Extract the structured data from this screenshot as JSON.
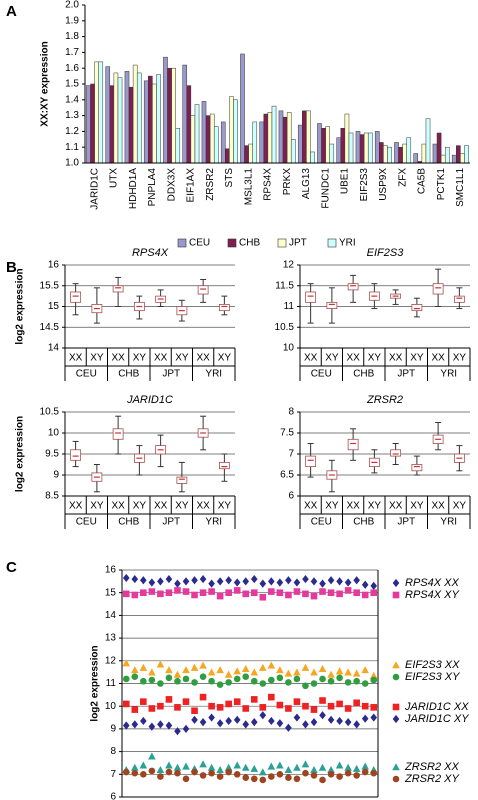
{
  "chart_data": [
    {
      "type": "bar",
      "panel": "A",
      "ylabel": "XX:XY expression",
      "categories": [
        "JARID1C",
        "UTX",
        "HDHD1A",
        "PNPLA4",
        "DDX3X",
        "EIF1AX",
        "ZRSR2",
        "STS",
        "MSL3L1",
        "RPS4X",
        "PRKX",
        "ALG13",
        "FUNDC1",
        "UBE1",
        "EIF2S3",
        "USP9X",
        "ZFX",
        "CA5B",
        "PCTK1",
        "SMC1L1"
      ],
      "series": [
        {
          "name": "CEU",
          "color": "#9999cc",
          "values": [
            1.49,
            1.61,
            1.58,
            1.52,
            1.67,
            1.62,
            1.39,
            1.26,
            1.69,
            1.26,
            1.33,
            1.24,
            1.25,
            1.16,
            1.2,
            1.2,
            1.13,
            1.06,
            1.12,
            1.05
          ]
        },
        {
          "name": "CHB",
          "color": "#7f1f4f",
          "values": [
            1.5,
            1.49,
            1.48,
            1.55,
            1.6,
            1.49,
            1.3,
            1.09,
            1.11,
            1.31,
            1.29,
            1.33,
            1.22,
            1.22,
            1.18,
            1.13,
            1.1,
            1.01,
            1.19,
            1.11
          ]
        },
        {
          "name": "JPT",
          "color": "#ffffcc",
          "values": [
            1.64,
            1.57,
            1.62,
            1.5,
            1.6,
            1.3,
            1.31,
            1.42,
            1.12,
            1.32,
            1.32,
            1.33,
            1.23,
            1.31,
            1.19,
            1.11,
            1.12,
            1.12,
            1.05,
            1.06
          ]
        },
        {
          "name": "YRI",
          "color": "#ccffff",
          "values": [
            1.64,
            1.54,
            1.57,
            1.56,
            1.22,
            1.37,
            1.23,
            1.4,
            1.26,
            1.36,
            1.15,
            1.07,
            1.12,
            1.19,
            1.19,
            1.1,
            1.16,
            1.28,
            1.1,
            1.11
          ]
        }
      ],
      "ylim": [
        1.0,
        2.0
      ],
      "yticks": [
        {
          "value": 1.0,
          "label": "1.0"
        },
        1.1,
        1.2,
        1.3,
        1.4,
        1.5,
        1.6,
        1.7,
        1.8,
        1.9,
        {
          "value": 2.0,
          "label": "2.0"
        }
      ],
      "grid": false,
      "legend": "bottom"
    },
    {
      "type": "box",
      "panel": "B",
      "title": "RPS4X",
      "ylabel": "log2 expression",
      "categories": [
        "XX",
        "XY",
        "XX",
        "XY",
        "XX",
        "XY",
        "XX",
        "XY"
      ],
      "groups": [
        "CEU",
        "CHB",
        "JPT",
        "YRI"
      ],
      "whisker_low": [
        14.8,
        14.6,
        15.0,
        14.7,
        15.0,
        14.65,
        15.1,
        14.8
      ],
      "q1": [
        15.1,
        14.85,
        15.35,
        14.9,
        15.1,
        14.8,
        15.3,
        14.9
      ],
      "median": [
        15.25,
        14.95,
        15.45,
        15.0,
        15.18,
        14.9,
        15.42,
        15.0
      ],
      "q3": [
        15.35,
        15.05,
        15.5,
        15.1,
        15.25,
        15.0,
        15.5,
        15.05
      ],
      "whisker_high": [
        15.55,
        15.45,
        15.7,
        15.25,
        15.4,
        15.15,
        15.65,
        15.25
      ],
      "ylim": [
        14,
        16
      ],
      "yticks": [
        14,
        14.5,
        15,
        15.5,
        16
      ],
      "grid": true
    },
    {
      "type": "box",
      "title": "EIF2S3",
      "categories": [
        "XX",
        "XY",
        "XX",
        "XY",
        "XX",
        "XY",
        "XX",
        "XY"
      ],
      "groups": [
        "CEU",
        "CHB",
        "JPT",
        "YRI"
      ],
      "whisker_low": [
        10.6,
        10.6,
        11.1,
        10.95,
        11.05,
        10.75,
        11.0,
        10.95
      ],
      "q1": [
        11.1,
        10.95,
        11.4,
        11.15,
        11.2,
        10.9,
        11.3,
        11.1
      ],
      "median": [
        11.25,
        11.05,
        11.5,
        11.25,
        11.25,
        10.95,
        11.45,
        11.2
      ],
      "q3": [
        11.35,
        11.1,
        11.55,
        11.35,
        11.3,
        11.05,
        11.55,
        11.25
      ],
      "whisker_high": [
        11.55,
        11.45,
        11.75,
        11.55,
        11.4,
        11.2,
        11.9,
        11.45
      ],
      "ylim": [
        10,
        12
      ],
      "yticks": [
        10,
        10.5,
        11,
        11.5,
        12
      ],
      "grid": true
    },
    {
      "type": "box",
      "title": "JARID1C",
      "ylabel": "log2 expression",
      "categories": [
        "XX",
        "XY",
        "XX",
        "XY",
        "XX",
        "XY",
        "XX",
        "XY"
      ],
      "groups": [
        "CEU",
        "CHB",
        "JPT",
        "YRI"
      ],
      "whisker_low": [
        9.2,
        8.6,
        9.5,
        9.0,
        9.2,
        8.6,
        9.6,
        8.85
      ],
      "q1": [
        9.35,
        8.85,
        9.85,
        9.3,
        9.5,
        8.8,
        9.9,
        9.15
      ],
      "median": [
        9.45,
        8.95,
        10.0,
        9.4,
        9.6,
        8.9,
        10.0,
        9.2
      ],
      "q3": [
        9.6,
        9.05,
        10.1,
        9.5,
        9.7,
        8.95,
        10.1,
        9.3
      ],
      "whisker_high": [
        9.8,
        9.25,
        10.4,
        9.7,
        9.95,
        9.3,
        10.4,
        9.5
      ],
      "ylim": [
        8.5,
        10.5
      ],
      "yticks": [
        8.5,
        9,
        9.5,
        10,
        10.5
      ],
      "grid": true
    },
    {
      "type": "box",
      "title": "ZRSR2",
      "categories": [
        "XX",
        "XY",
        "XX",
        "XY",
        "XX",
        "XY",
        "XX",
        "XY"
      ],
      "groups": [
        "CEU",
        "CHB",
        "JPT",
        "YRI"
      ],
      "whisker_low": [
        6.45,
        6.1,
        6.85,
        6.55,
        6.75,
        6.5,
        7.1,
        6.6
      ],
      "q1": [
        6.7,
        6.4,
        7.1,
        6.7,
        6.95,
        6.6,
        7.25,
        6.8
      ],
      "median": [
        6.85,
        6.5,
        7.25,
        6.8,
        7.0,
        6.7,
        7.35,
        6.9
      ],
      "q3": [
        6.95,
        6.6,
        7.35,
        6.9,
        7.1,
        6.75,
        7.45,
        7.0
      ],
      "whisker_high": [
        7.25,
        6.85,
        7.6,
        7.1,
        7.25,
        6.95,
        7.75,
        7.2
      ],
      "ylim": [
        6,
        8
      ],
      "yticks": [
        6,
        6.5,
        7,
        7.5,
        8
      ],
      "grid": true
    },
    {
      "type": "scatter",
      "panel": "C",
      "ylabel": "log2 expression",
      "series": [
        {
          "name": "RPS4X XX",
          "color": "#2b2b8f",
          "marker": "diamond",
          "values": [
            15.65,
            15.6,
            15.55,
            15.45,
            15.5,
            15.6,
            15.4,
            15.5,
            15.55,
            15.6,
            15.4,
            15.5,
            15.55,
            15.45,
            15.5,
            15.6,
            15.4,
            15.5,
            15.45,
            15.55,
            15.45,
            15.6,
            15.5,
            15.4,
            15.55,
            15.5,
            15.45,
            15.55,
            15.35,
            15.3
          ]
        },
        {
          "name": "RPS4X XY",
          "color": "#e6399b",
          "marker": "square",
          "values": [
            14.95,
            14.9,
            15.0,
            15.05,
            14.95,
            15.0,
            15.1,
            15.05,
            14.9,
            15.0,
            15.05,
            14.85,
            15.0,
            15.1,
            14.95,
            15.0,
            14.8,
            15.05,
            15.0,
            14.9,
            15.05,
            14.95,
            14.85,
            15.05,
            15.0,
            14.95,
            15.1,
            15.0,
            14.9,
            15.0
          ]
        },
        {
          "name": "EIF2S3 XX",
          "color": "#f5a623",
          "marker": "triangle",
          "values": [
            11.9,
            11.6,
            11.7,
            11.5,
            11.85,
            11.6,
            11.4,
            11.6,
            11.7,
            11.8,
            11.5,
            11.6,
            11.4,
            11.55,
            11.65,
            11.5,
            11.7,
            11.8,
            11.6,
            11.45,
            11.5,
            11.7,
            11.5,
            11.65,
            11.4,
            11.55,
            11.5,
            11.45,
            11.6,
            11.35
          ]
        },
        {
          "name": "EIF2S3 XY",
          "color": "#2e9e3e",
          "marker": "circle",
          "values": [
            11.2,
            11.3,
            11.1,
            11.15,
            11.0,
            11.25,
            11.1,
            11.2,
            11.05,
            11.3,
            11.1,
            10.95,
            11.05,
            11.2,
            11.3,
            11.1,
            11.0,
            11.15,
            11.25,
            11.05,
            11.2,
            10.9,
            11.0,
            11.2,
            11.1,
            11.25,
            11.05,
            11.1,
            11.0,
            11.15
          ]
        },
        {
          "name": "JARID1C XX",
          "color": "#ee2222",
          "marker": "square",
          "values": [
            10.1,
            9.85,
            10.2,
            9.9,
            10.0,
            10.3,
            9.95,
            10.2,
            9.8,
            10.4,
            10.0,
            9.95,
            10.1,
            10.2,
            9.9,
            10.3,
            9.95,
            10.4,
            10.05,
            9.9,
            10.2,
            10.0,
            9.85,
            10.25,
            10.0,
            10.1,
            9.9,
            10.15,
            10.0,
            9.95
          ]
        },
        {
          "name": "JARID1C XY",
          "color": "#2b2b8f",
          "marker": "diamond",
          "values": [
            9.15,
            9.2,
            9.35,
            9.1,
            9.2,
            9.15,
            8.9,
            9.0,
            9.4,
            9.3,
            9.5,
            9.25,
            9.35,
            9.4,
            9.2,
            9.3,
            9.6,
            9.35,
            9.25,
            9.05,
            9.5,
            9.2,
            9.3,
            9.6,
            9.4,
            9.35,
            9.3,
            9.2,
            9.45,
            9.5
          ]
        },
        {
          "name": "ZRSR2 XX",
          "color": "#2aa198",
          "marker": "triangle",
          "values": [
            7.2,
            7.3,
            7.4,
            7.8,
            7.2,
            7.4,
            7.3,
            7.35,
            7.25,
            7.45,
            7.3,
            7.2,
            7.3,
            7.4,
            7.3,
            7.25,
            7.1,
            7.35,
            7.4,
            7.2,
            7.3,
            7.45,
            7.2,
            7.3,
            7.2,
            7.4,
            7.3,
            7.25,
            7.35,
            7.2
          ]
        },
        {
          "name": "ZRSR2 XY",
          "color": "#a0441f",
          "marker": "circle",
          "values": [
            7.1,
            7.05,
            7.0,
            7.15,
            6.9,
            7.1,
            7.05,
            6.8,
            7.1,
            6.95,
            7.05,
            6.9,
            7.1,
            7.0,
            6.85,
            6.8,
            6.75,
            6.9,
            7.0,
            6.85,
            6.8,
            7.05,
            6.95,
            6.75,
            7.0,
            6.9,
            7.05,
            6.95,
            7.1,
            7.05
          ]
        }
      ],
      "ylim": [
        6,
        16
      ],
      "yticks": [
        6,
        7,
        8,
        9,
        10,
        11,
        12,
        13,
        14,
        15,
        16
      ],
      "grid": true,
      "legend": "right"
    }
  ]
}
